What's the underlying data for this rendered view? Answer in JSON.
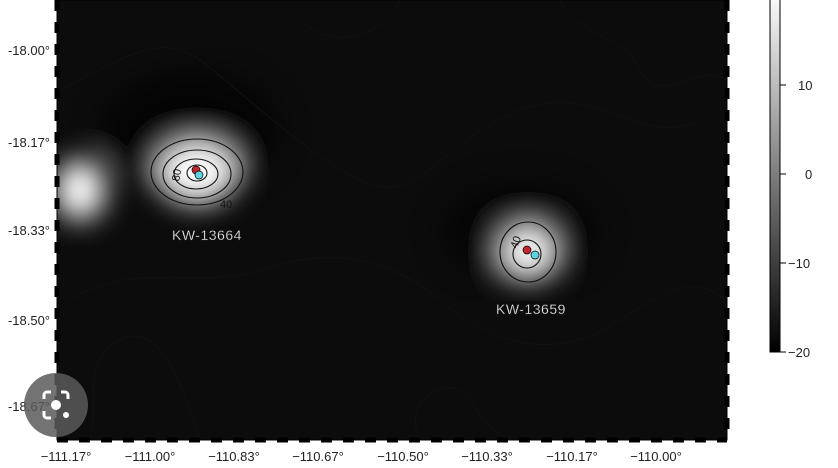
{
  "map": {
    "x_ticks": [
      "−111.17°",
      "−111.00°",
      "−110.83°",
      "−110.67°",
      "−110.50°",
      "−110.33°",
      "−110.17°",
      "−110.00°"
    ],
    "y_ticks": [
      "-18.00°",
      "-18.17°",
      "-18.33°",
      "-18.50°",
      "-18.67°"
    ],
    "sources": [
      {
        "name": "KW-13664",
        "contour_labels": [
          "80",
          "40"
        ]
      },
      {
        "name": "KW-13659",
        "contour_labels": [
          "40"
        ]
      }
    ],
    "marker_colors": {
      "red": "#c0262b",
      "cyan": "#5fd3e0"
    },
    "colorbar": {
      "ticks": [
        "10",
        "0",
        "−10",
        "−20"
      ],
      "range": [
        -20,
        20
      ],
      "colormap": "grayscale"
    }
  },
  "overlay": {
    "icon": "lens-search-icon"
  }
}
